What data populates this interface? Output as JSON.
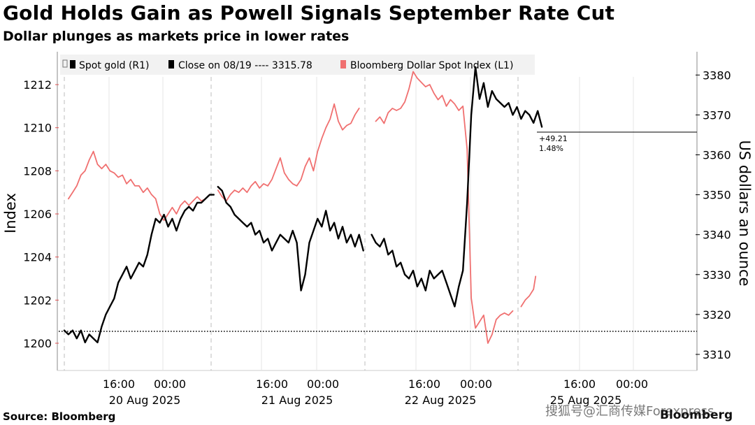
{
  "header": {
    "title": "Gold Holds Gain as Powell Signals September Rate Cut",
    "subtitle": "Dollar plunges as markets price in lower rates"
  },
  "footer": {
    "source": "Source: Bloomberg",
    "brand": "Bloomberg",
    "watermark": "搜狐号@汇商传媒Forexpress"
  },
  "chart_data": {
    "type": "line",
    "legend": {
      "placement": "top-left",
      "items": [
        {
          "label": "Spot gold (R1)",
          "color": "#000000"
        },
        {
          "label": "Close on 08/19 ---- 3315.78",
          "color": "#000000"
        },
        {
          "label": "Bloomberg Dollar Spot Index (L1)",
          "color": "#f07070"
        }
      ]
    },
    "left_axis": {
      "label": "Index",
      "ylim": [
        1199,
        1213
      ],
      "ticks": [
        "1200",
        "1202",
        "1204",
        "1206",
        "1208",
        "1210",
        "1212"
      ]
    },
    "right_axis": {
      "label": "US dollars an ounce",
      "ylim": [
        3309,
        3383
      ],
      "ticks": [
        "3310",
        "3320",
        "3330",
        "3340",
        "3350",
        "3360",
        "3370",
        "3380"
      ]
    },
    "x_axis": {
      "tick_labels": [
        "16:00",
        "00:00",
        "16:00",
        "00:00",
        "16:00",
        "00:00",
        "16:00",
        "00:00"
      ],
      "date_labels": [
        "20 Aug 2025",
        "21 Aug 2025",
        "22 Aug 2025",
        "25 Aug 2025"
      ]
    },
    "reference_line": {
      "label": "Close on 08/19",
      "value": 3315.78,
      "axis": "right"
    },
    "annotation": {
      "change": "+49.21",
      "percent": "1.48%"
    },
    "grid": "vertical",
    "series": [
      {
        "name": "Spot gold (R1)",
        "axis": "right",
        "color": "#000000",
        "segments": [
          [
            [
              0,
              3316
            ],
            [
              6,
              3315
            ],
            [
              12,
              3316
            ],
            [
              18,
              3314
            ],
            [
              24,
              3316
            ],
            [
              30,
              3313
            ],
            [
              36,
              3315
            ],
            [
              42,
              3314
            ],
            [
              48,
              3313
            ],
            [
              54,
              3317
            ],
            [
              60,
              3320
            ],
            [
              66,
              3322
            ],
            [
              72,
              3324
            ],
            [
              78,
              3328
            ],
            [
              84,
              3330
            ],
            [
              90,
              3332
            ],
            [
              96,
              3329
            ],
            [
              102,
              3331
            ],
            [
              108,
              3333
            ],
            [
              114,
              3332
            ],
            [
              120,
              3335
            ],
            [
              126,
              3340
            ],
            [
              132,
              3344
            ],
            [
              138,
              3343
            ],
            [
              144,
              3345
            ],
            [
              150,
              3342
            ],
            [
              156,
              3344
            ],
            [
              162,
              3341
            ],
            [
              168,
              3344
            ],
            [
              174,
              3346
            ],
            [
              180,
              3347
            ],
            [
              186,
              3346
            ],
            [
              192,
              3348
            ],
            [
              198,
              3348
            ],
            [
              204,
              3349
            ],
            [
              210,
              3350
            ],
            [
              216,
              3350
            ]
          ],
          [
            [
              222,
              3352
            ],
            [
              228,
              3351
            ],
            [
              234,
              3348
            ],
            [
              240,
              3347
            ],
            [
              246,
              3345
            ],
            [
              252,
              3344
            ],
            [
              258,
              3343
            ],
            [
              264,
              3342
            ],
            [
              270,
              3343
            ],
            [
              276,
              3340
            ],
            [
              282,
              3341
            ],
            [
              288,
              3338
            ],
            [
              294,
              3339
            ],
            [
              300,
              3336
            ],
            [
              306,
              3338
            ],
            [
              312,
              3340
            ],
            [
              318,
              3339
            ],
            [
              324,
              3338
            ],
            [
              330,
              3341
            ],
            [
              336,
              3338
            ],
            [
              342,
              3326
            ],
            [
              348,
              3330
            ],
            [
              354,
              3338
            ],
            [
              360,
              3341
            ],
            [
              366,
              3344
            ],
            [
              372,
              3342
            ],
            [
              378,
              3346
            ],
            [
              384,
              3341
            ],
            [
              390,
              3343
            ],
            [
              396,
              3339
            ],
            [
              402,
              3342
            ],
            [
              408,
              3338
            ],
            [
              414,
              3340
            ],
            [
              420,
              3337
            ],
            [
              426,
              3340
            ],
            [
              432,
              3336
            ]
          ],
          [
            [
              444,
              3340
            ],
            [
              450,
              3338
            ],
            [
              456,
              3337
            ],
            [
              462,
              3339
            ],
            [
              468,
              3335
            ],
            [
              474,
              3336
            ],
            [
              480,
              3332
            ],
            [
              486,
              3333
            ],
            [
              492,
              3330
            ],
            [
              498,
              3329
            ],
            [
              504,
              3331
            ],
            [
              510,
              3327
            ],
            [
              516,
              3329
            ],
            [
              522,
              3326
            ],
            [
              528,
              3331
            ],
            [
              534,
              3329
            ],
            [
              540,
              3330
            ],
            [
              546,
              3331
            ],
            [
              552,
              3328
            ],
            [
              558,
              3325
            ],
            [
              564,
              3322
            ],
            [
              570,
              3327
            ],
            [
              576,
              3331
            ],
            [
              582,
              3348
            ],
            [
              588,
              3370
            ],
            [
              594,
              3382
            ],
            [
              600,
              3374
            ],
            [
              606,
              3378
            ],
            [
              612,
              3372
            ],
            [
              618,
              3376
            ],
            [
              624,
              3374
            ],
            [
              630,
              3373
            ],
            [
              636,
              3372
            ],
            [
              642,
              3373
            ],
            [
              648,
              3370
            ],
            [
              654,
              3372
            ],
            [
              660,
              3369
            ],
            [
              666,
              3371
            ],
            [
              672,
              3370
            ],
            [
              678,
              3368
            ],
            [
              684,
              3371
            ],
            [
              690,
              3367
            ]
          ]
        ]
      },
      {
        "name": "Bloomberg Dollar Spot Index (L1)",
        "axis": "left",
        "color": "#f07070",
        "segments": [
          [
            [
              6,
              1206.7
            ],
            [
              12,
              1207.0
            ],
            [
              18,
              1207.3
            ],
            [
              24,
              1207.8
            ],
            [
              30,
              1208.0
            ],
            [
              36,
              1208.5
            ],
            [
              42,
              1208.9
            ],
            [
              48,
              1208.3
            ],
            [
              54,
              1208.1
            ],
            [
              60,
              1208.3
            ],
            [
              66,
              1208.0
            ],
            [
              72,
              1207.9
            ],
            [
              78,
              1207.7
            ],
            [
              84,
              1207.8
            ],
            [
              90,
              1207.4
            ],
            [
              96,
              1207.6
            ],
            [
              102,
              1207.3
            ],
            [
              108,
              1207.3
            ],
            [
              114,
              1207.0
            ],
            [
              120,
              1207.2
            ],
            [
              126,
              1206.9
            ],
            [
              132,
              1206.7
            ],
            [
              138,
              1206.0
            ],
            [
              144,
              1205.7
            ],
            [
              150,
              1206.0
            ],
            [
              156,
              1206.3
            ],
            [
              162,
              1206.0
            ],
            [
              168,
              1206.4
            ],
            [
              174,
              1206.6
            ],
            [
              180,
              1206.4
            ],
            [
              186,
              1206.6
            ],
            [
              192,
              1206.8
            ],
            [
              198,
              1206.6
            ],
            [
              204,
              1206.7
            ],
            [
              210,
              1206.9
            ]
          ],
          [
            [
              222,
              1207.1
            ],
            [
              228,
              1206.8
            ],
            [
              234,
              1206.6
            ],
            [
              240,
              1206.9
            ],
            [
              246,
              1207.1
            ],
            [
              252,
              1207.0
            ],
            [
              258,
              1207.2
            ],
            [
              264,
              1207.0
            ],
            [
              270,
              1207.3
            ],
            [
              276,
              1207.5
            ],
            [
              282,
              1207.2
            ],
            [
              288,
              1207.4
            ],
            [
              294,
              1207.3
            ],
            [
              300,
              1207.6
            ],
            [
              306,
              1208.1
            ],
            [
              312,
              1208.6
            ],
            [
              318,
              1207.9
            ],
            [
              324,
              1207.6
            ],
            [
              330,
              1207.4
            ],
            [
              336,
              1207.3
            ],
            [
              342,
              1207.6
            ],
            [
              348,
              1208.2
            ],
            [
              354,
              1208.6
            ],
            [
              360,
              1208.0
            ],
            [
              366,
              1208.9
            ],
            [
              372,
              1209.5
            ],
            [
              378,
              1210.0
            ],
            [
              384,
              1210.4
            ],
            [
              390,
              1211.1
            ],
            [
              396,
              1210.3
            ],
            [
              402,
              1209.9
            ],
            [
              408,
              1210.1
            ],
            [
              414,
              1210.2
            ],
            [
              420,
              1210.6
            ],
            [
              426,
              1210.9
            ]
          ],
          [
            [
              450,
              1210.3
            ],
            [
              456,
              1210.5
            ],
            [
              462,
              1210.2
            ],
            [
              468,
              1210.7
            ],
            [
              474,
              1210.9
            ],
            [
              480,
              1210.8
            ],
            [
              486,
              1210.9
            ],
            [
              492,
              1211.2
            ],
            [
              498,
              1211.8
            ],
            [
              504,
              1212.6
            ],
            [
              510,
              1212.3
            ],
            [
              516,
              1212.1
            ],
            [
              522,
              1211.9
            ],
            [
              528,
              1212.0
            ],
            [
              534,
              1211.6
            ],
            [
              540,
              1211.3
            ],
            [
              546,
              1211.5
            ],
            [
              552,
              1211.0
            ],
            [
              558,
              1211.3
            ],
            [
              564,
              1211.1
            ],
            [
              570,
              1210.8
            ],
            [
              576,
              1211.0
            ],
            [
              582,
              1209.0
            ],
            [
              588,
              1202.1
            ],
            [
              594,
              1200.7
            ],
            [
              600,
              1201.0
            ],
            [
              606,
              1201.3
            ],
            [
              612,
              1200.0
            ],
            [
              618,
              1200.4
            ],
            [
              624,
              1201.1
            ],
            [
              630,
              1201.3
            ],
            [
              636,
              1201.4
            ],
            [
              642,
              1201.3
            ],
            [
              648,
              1201.5
            ]
          ],
          [
            [
              660,
              1201.7
            ],
            [
              666,
              1202.0
            ],
            [
              672,
              1202.2
            ],
            [
              678,
              1202.5
            ],
            [
              681,
              1203.1
            ]
          ]
        ]
      }
    ]
  }
}
